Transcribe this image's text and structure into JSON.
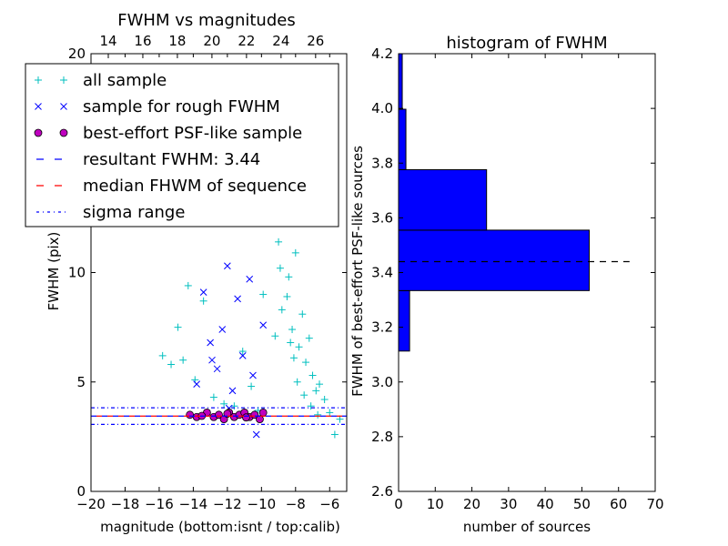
{
  "chart_data": [
    {
      "type": "scatter",
      "title": "FWHM vs magnitudes",
      "xlabel": "magnitude (bottom:isnt / top:calib)",
      "ylabel": "FWHM (pix)",
      "xlim": [
        -20,
        -5
      ],
      "ylim": [
        0,
        20
      ],
      "top_xlim": [
        13,
        27.8
      ],
      "x_ticks": [
        -20,
        -18,
        -16,
        -14,
        -12,
        -10,
        -8,
        -6
      ],
      "x_tick_labels": [
        "−20",
        "−18",
        "−16",
        "−14",
        "−12",
        "−10",
        "−8",
        "−6"
      ],
      "top_x_ticks": [
        14,
        16,
        18,
        20,
        22,
        24,
        26
      ],
      "y_ticks": [
        0,
        5,
        10,
        20
      ],
      "y_tick_labels": [
        "0",
        "5",
        "10",
        "20"
      ],
      "legend": {
        "position": "upper-left",
        "entries": [
          "all sample",
          "sample for rough FWHM",
          "best-effort PSF-like sample",
          "resultant FWHM: 3.44",
          "median FHWM of sequence",
          "sigma range"
        ]
      },
      "series": [
        {
          "name": "all sample",
          "marker": "plus",
          "color": "#00bfbf",
          "x": [
            -15.8,
            -15.3,
            -14.9,
            -14.6,
            -14.3,
            -13.9,
            -13.4,
            -12.8,
            -12.2,
            -11.6,
            -11.1,
            -10.6,
            -10.2,
            -9.9,
            -9.6,
            -9.4,
            -9.2,
            -9.0,
            -8.8,
            -8.6,
            -8.4,
            -8.2,
            -8.0,
            -7.8,
            -7.6,
            -7.4,
            -7.2,
            -7.0,
            -6.8,
            -6.6,
            -6.3,
            -6.0,
            -5.7,
            -5.4,
            -9.1,
            -8.7,
            -8.3,
            -7.9,
            -7.5,
            -7.1,
            -6.7,
            -8.9,
            -8.5,
            -8.1
          ],
          "y": [
            6.2,
            5.8,
            7.5,
            6.0,
            9.4,
            5.1,
            8.7,
            4.3,
            4.0,
            3.9,
            6.4,
            4.8,
            3.7,
            9.0,
            13.2,
            16.8,
            7.1,
            11.4,
            8.3,
            12.6,
            9.8,
            7.4,
            10.9,
            6.6,
            8.1,
            5.9,
            7.0,
            5.3,
            4.6,
            4.9,
            4.2,
            3.6,
            2.6,
            3.3,
            18.7,
            14.9,
            6.8,
            5.0,
            4.4,
            3.9,
            3.5,
            10.2,
            8.9,
            6.1
          ]
        },
        {
          "name": "sample for rough FWHM",
          "marker": "x",
          "color": "#0000ff",
          "x": [
            -13.8,
            -13.4,
            -13.0,
            -12.6,
            -12.3,
            -12.0,
            -11.7,
            -11.4,
            -11.1,
            -10.8,
            -10.5,
            -10.2,
            -9.9,
            -9.6,
            -10.3,
            -11.9,
            -12.9,
            -10.7
          ],
          "y": [
            4.9,
            9.1,
            6.8,
            5.6,
            7.4,
            10.3,
            4.6,
            8.8,
            6.2,
            12.4,
            5.3,
            14.1,
            7.6,
            16.2,
            2.6,
            3.8,
            6.0,
            9.7
          ]
        },
        {
          "name": "best-effort PSF-like sample",
          "marker": "circle",
          "color": "#bf00bf",
          "x": [
            -14.2,
            -13.8,
            -13.2,
            -12.8,
            -12.5,
            -12.2,
            -11.9,
            -11.6,
            -11.3,
            -11.0,
            -10.7,
            -10.4,
            -10.1,
            -9.9,
            -13.5,
            -12.0,
            -10.9
          ],
          "y": [
            3.5,
            3.4,
            3.6,
            3.4,
            3.5,
            3.3,
            3.6,
            3.4,
            3.5,
            3.6,
            3.4,
            3.5,
            3.3,
            3.6,
            3.45,
            3.55,
            3.38
          ]
        },
        {
          "name": "resultant FWHM: 3.44",
          "type": "hline",
          "y": 3.44,
          "color": "#0000ff",
          "style": "dashed"
        },
        {
          "name": "median FHWM of sequence",
          "type": "hline",
          "y": 3.44,
          "color": "#ff0000",
          "style": "dashed"
        },
        {
          "name": "sigma range",
          "type": "hline",
          "y": [
            3.06,
            3.82
          ],
          "color": "#0000ff",
          "style": "dashdot"
        }
      ]
    },
    {
      "type": "bar",
      "orientation": "horizontal",
      "title": "histogram of FWHM",
      "xlabel": "number of sources",
      "ylabel": "FWHM of best-effort PSF-like sources",
      "xlim": [
        0,
        70
      ],
      "ylim": [
        2.6,
        4.2
      ],
      "x_ticks": [
        0,
        10,
        20,
        30,
        40,
        50,
        60,
        70
      ],
      "y_ticks": [
        2.6,
        2.8,
        3.0,
        3.2,
        3.4,
        3.6,
        3.8,
        4.0,
        4.2
      ],
      "y_tick_labels": [
        "2.6",
        "2.8",
        "3.0",
        "3.2",
        "3.4",
        "3.6",
        "3.8",
        "4.0",
        "4.2"
      ],
      "bin_edges": [
        3.113,
        3.334,
        3.555,
        3.776,
        3.997,
        4.2
      ],
      "counts": [
        3,
        52,
        24,
        2,
        1
      ],
      "bar_color": "#0000ff",
      "reference_line": {
        "y": 3.44,
        "x_end": 63,
        "style": "dashed",
        "color": "#000000"
      }
    }
  ]
}
